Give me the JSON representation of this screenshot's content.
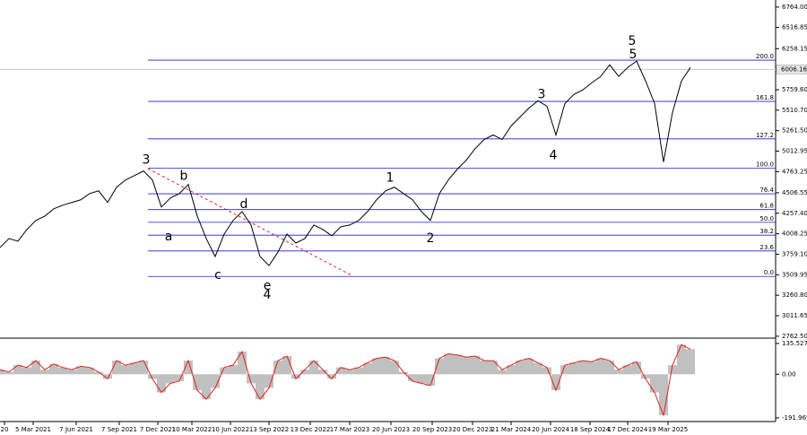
{
  "chart_data": [
    {
      "type": "line",
      "color": "#000000",
      "ylim": [
        2750,
        6850
      ],
      "yticks": [
        {
          "value": 6764,
          "label": "6764.00"
        },
        {
          "value": 6516.85,
          "label": "6516.85"
        },
        {
          "value": 6258.15,
          "label": "6258.15"
        },
        {
          "value": 5759.6,
          "label": "5759.60"
        },
        {
          "value": 5510.7,
          "label": "5510.70"
        },
        {
          "value": 5261.5,
          "label": "5261.50"
        },
        {
          "value": 5012.95,
          "label": "5012.95"
        },
        {
          "value": 4763.25,
          "label": "4763.25"
        },
        {
          "value": 4506.55,
          "label": "4506.55"
        },
        {
          "value": 4257.4,
          "label": "4257.40"
        },
        {
          "value": 4008.25,
          "label": "4008.25"
        },
        {
          "value": 3759.1,
          "label": "3759.10"
        },
        {
          "value": 3509.95,
          "label": "3509.95"
        },
        {
          "value": 3260.8,
          "label": "3260.80"
        },
        {
          "value": 3011.65,
          "label": "3011.65"
        },
        {
          "value": 2762.5,
          "label": "2762.50"
        }
      ],
      "last_price": {
        "value": 6006.16,
        "label": "6006.16"
      },
      "xlim": [
        0,
        86.5
      ],
      "xticks": [
        {
          "value": 0.5,
          "label": "20"
        },
        {
          "value": 3.7,
          "label": "5 Mar 2021"
        },
        {
          "value": 8.5,
          "label": "7 Jun 2021"
        },
        {
          "value": 13.3,
          "label": "7 Sep 2021"
        },
        {
          "value": 17.6,
          "label": "7 Dec 2021"
        },
        {
          "value": 21.4,
          "label": "10 Mar 2022"
        },
        {
          "value": 25.7,
          "label": "10 Jun 2022"
        },
        {
          "value": 30,
          "label": "13 Sep 2022"
        },
        {
          "value": 34.6,
          "label": "13 Dec 2022"
        },
        {
          "value": 39,
          "label": "17 Mar 2023"
        },
        {
          "value": 43.6,
          "label": "20 Jun 2023"
        },
        {
          "value": 48.2,
          "label": "20 Sep 2023"
        },
        {
          "value": 52.7,
          "label": "20 Dec 2023"
        },
        {
          "value": 57,
          "label": "21 Mar 2024"
        },
        {
          "value": 61.4,
          "label": "20 Jun 2024"
        },
        {
          "value": 65.8,
          "label": "18 Sep 2024"
        },
        {
          "value": 70,
          "label": "17 Dec 2024"
        },
        {
          "value": 74.5,
          "label": "19 Mar 2025"
        }
      ],
      "values": [
        3840,
        3950,
        3917,
        4060,
        4170,
        4223,
        4311,
        4355,
        4388,
        4421,
        4497,
        4530,
        4388,
        4574,
        4662,
        4716,
        4771,
        4662,
        4333,
        4443,
        4497,
        4607,
        4223,
        3950,
        3731,
        4004,
        4170,
        4278,
        4114,
        3731,
        3621,
        3785,
        4004,
        3895,
        3950,
        4114,
        4060,
        3983,
        4093,
        4114,
        4170,
        4278,
        4421,
        4530,
        4574,
        4497,
        4421,
        4278,
        4170,
        4497,
        4662,
        4793,
        4903,
        5045,
        5154,
        5209,
        5154,
        5318,
        5428,
        5537,
        5625,
        5559,
        5209,
        5592,
        5702,
        5757,
        5844,
        5921,
        6063,
        5921,
        6030,
        6107,
        5866,
        5592,
        4880,
        5483,
        5866,
        6030
      ],
      "fib_levels": [
        {
          "label": "200.0",
          "price": 6119
        },
        {
          "label": "161.8",
          "price": 5617
        },
        {
          "label": "127.2",
          "price": 5162
        },
        {
          "label": "100.0",
          "price": 4804
        },
        {
          "label": "76.4",
          "price": 4494
        },
        {
          "label": "61.8",
          "price": 4302
        },
        {
          "label": "50.0",
          "price": 4147
        },
        {
          "label": "38.2",
          "price": 3991
        },
        {
          "label": "23.6",
          "price": 3799
        },
        {
          "label": "0.0",
          "price": 3489
        }
      ],
      "annotations": [
        {
          "text": "3",
          "x": 16.3,
          "y": 4902,
          "color": "#1f1fd6"
        },
        {
          "text": "a",
          "x": 18.8,
          "y": 3972,
          "color": "#e0201b"
        },
        {
          "text": "b",
          "x": 20.5,
          "y": 4705,
          "color": "#e0201b"
        },
        {
          "text": "c",
          "x": 24.3,
          "y": 3501,
          "color": "#e0201b"
        },
        {
          "text": "d",
          "x": 27.2,
          "y": 4366,
          "color": "#e0201b"
        },
        {
          "text": "e",
          "x": 29.8,
          "y": 3369,
          "color": "#e0201b"
        },
        {
          "text": "4",
          "x": 29.8,
          "y": 3260,
          "color": "#1f1fd6"
        },
        {
          "text": "1",
          "x": 43.5,
          "y": 4683,
          "color": "#e0201b"
        },
        {
          "text": "2",
          "x": 48,
          "y": 3950,
          "color": "#e0201b"
        },
        {
          "text": "3",
          "x": 60.4,
          "y": 5702,
          "color": "#e0201b"
        },
        {
          "text": "4",
          "x": 61.7,
          "y": 4957,
          "color": "#e0201b"
        },
        {
          "text": "5",
          "x": 70.6,
          "y": 6184,
          "color": "#e0201b"
        },
        {
          "text": "5",
          "x": 70.5,
          "y": 6348,
          "color": "#1f1fd6"
        }
      ]
    },
    {
      "type": "bar",
      "color": "#c0c0c0",
      "line_color": "#e0201b",
      "ylim": [
        -208,
        155
      ],
      "yticks": [
        {
          "value": 135.527,
          "label": "135.527"
        },
        {
          "value": 0,
          "label": "0.00"
        },
        {
          "value": -191.965,
          "label": "-191.965"
        }
      ],
      "values": [
        20,
        10,
        40,
        30,
        60,
        20,
        45,
        30,
        20,
        35,
        30,
        10,
        -20,
        60,
        40,
        50,
        60,
        -20,
        -80,
        -40,
        -30,
        60,
        -70,
        -110,
        -60,
        30,
        40,
        100,
        -40,
        -110,
        -60,
        60,
        80,
        -20,
        20,
        60,
        20,
        -20,
        30,
        20,
        30,
        50,
        70,
        75,
        60,
        10,
        -30,
        -40,
        -50,
        70,
        90,
        85,
        75,
        80,
        60,
        60,
        20,
        40,
        60,
        70,
        50,
        30,
        -70,
        40,
        50,
        60,
        55,
        70,
        60,
        20,
        40,
        55,
        -20,
        -80,
        -180,
        40,
        130,
        110
      ]
    }
  ]
}
